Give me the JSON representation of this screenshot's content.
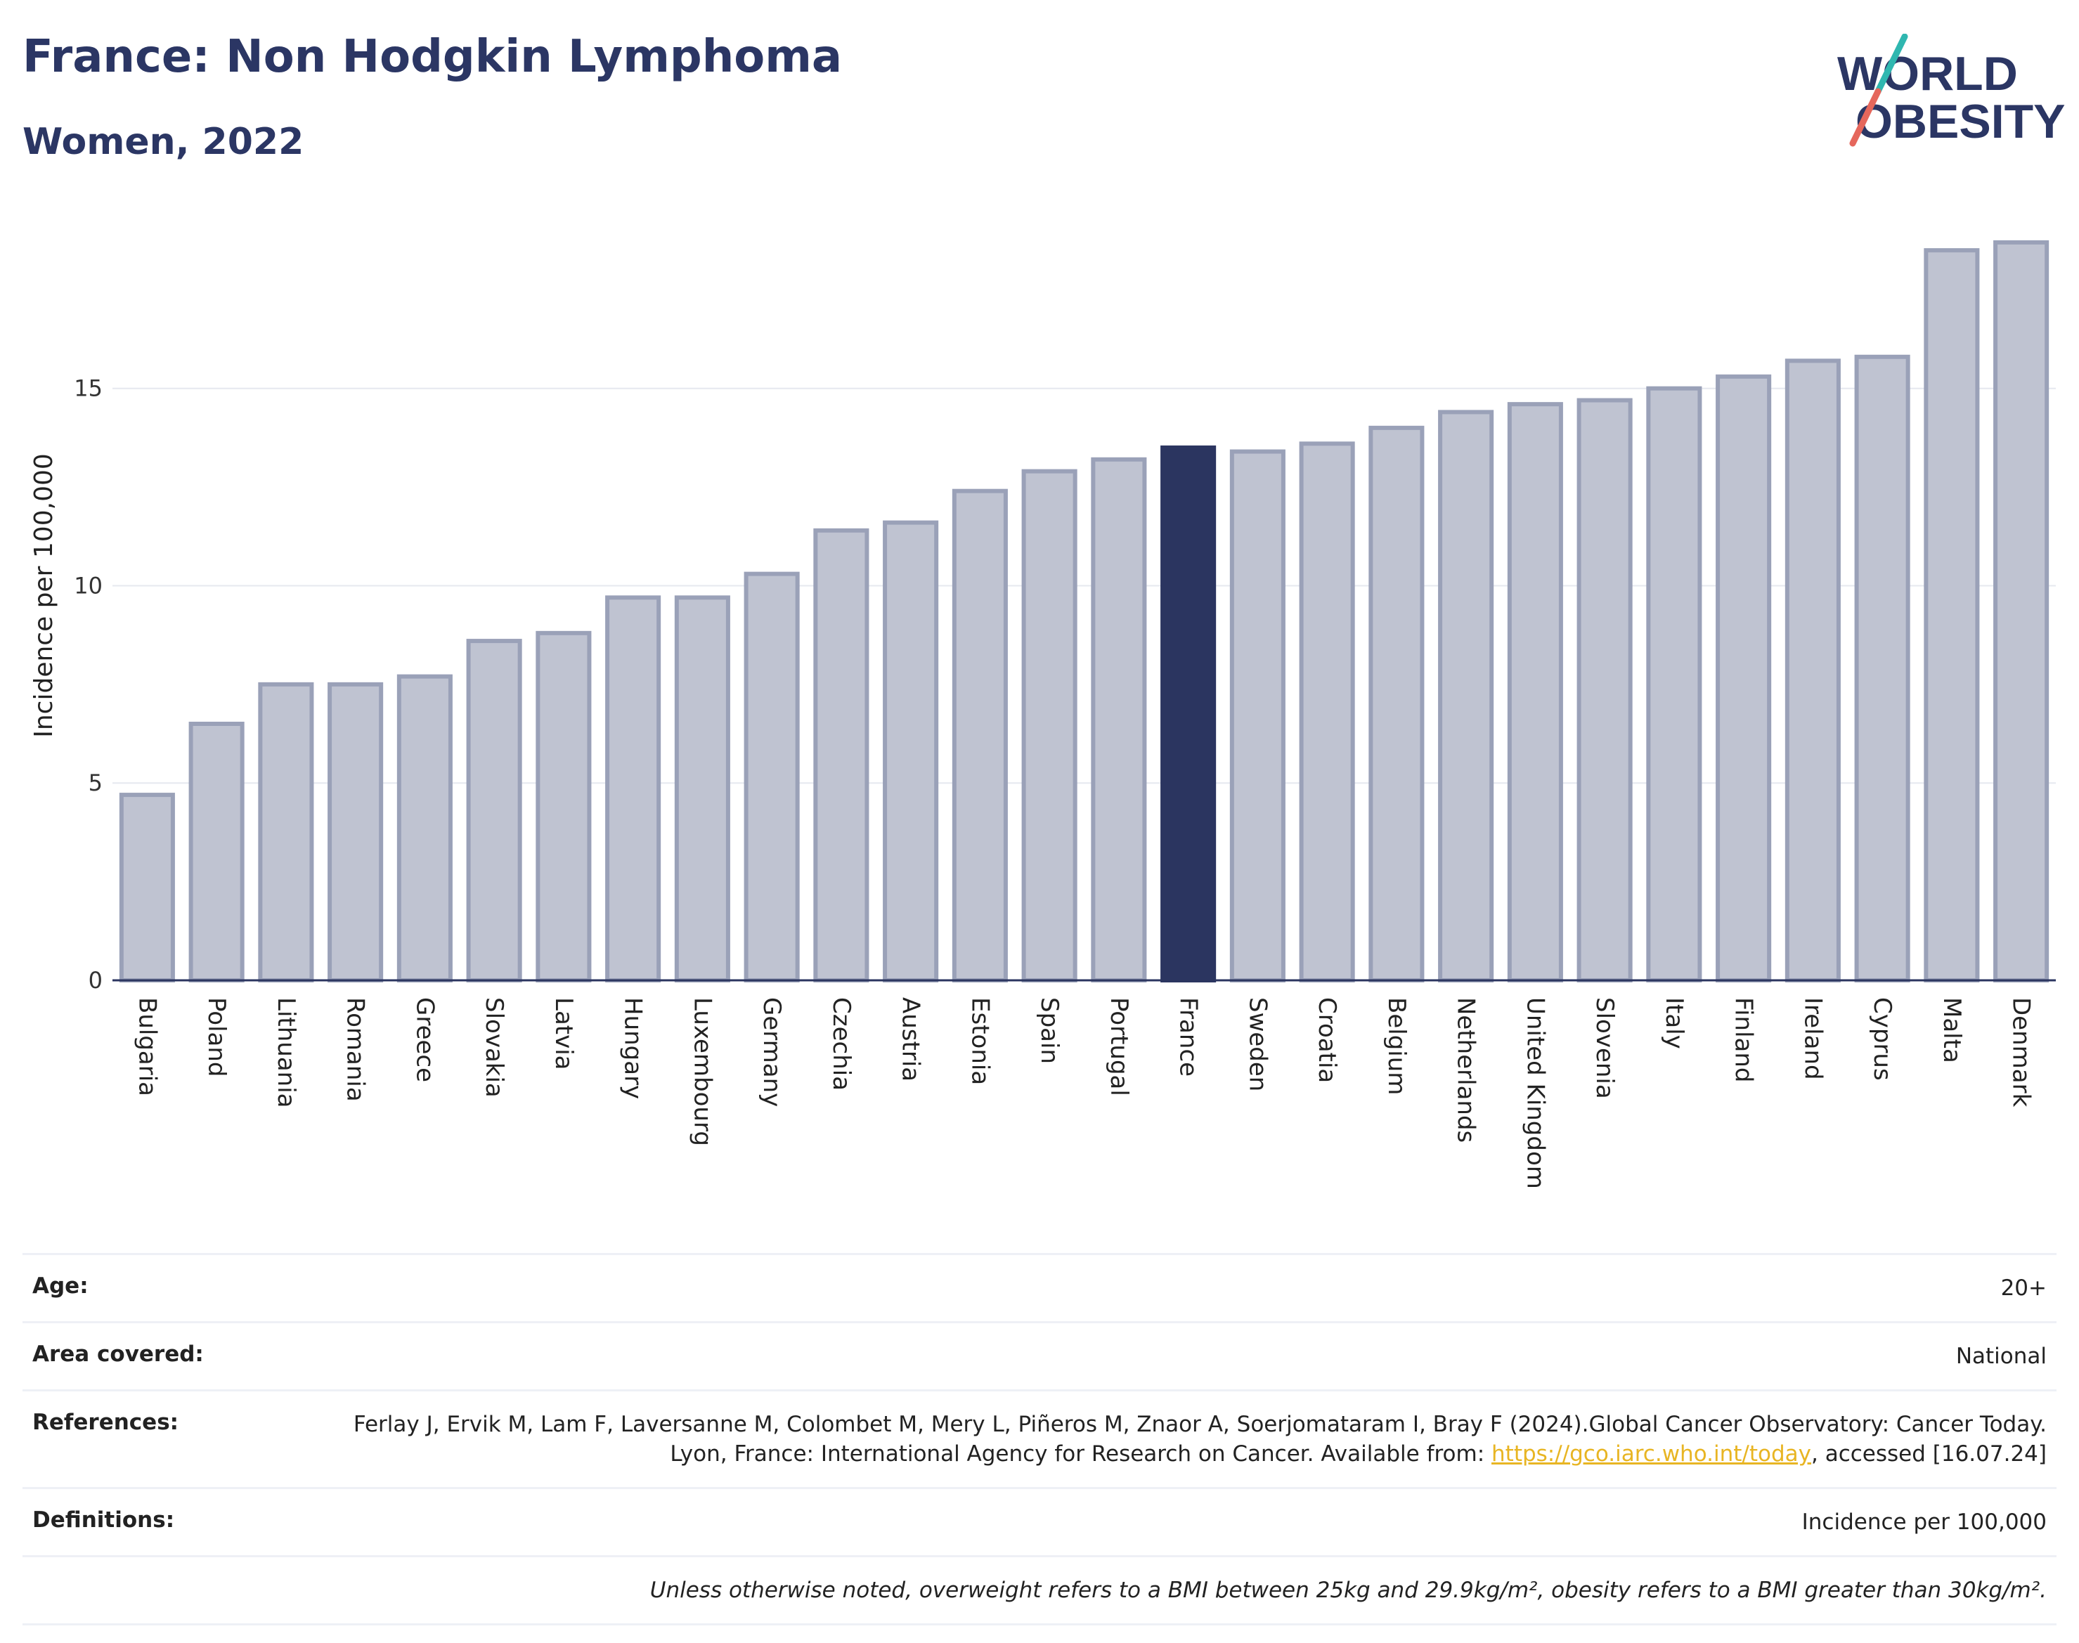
{
  "header": {
    "title": "France: Non Hodgkin Lymphoma",
    "subtitle": "Women, 2022",
    "logo_line1": "WORLD",
    "logo_line2": "OBESITY"
  },
  "colors": {
    "bar": "#bfc3d1",
    "bar_border": "#9aa1b8",
    "highlight": "#2b3560",
    "grid": "#e6e8ef",
    "axis": "#2b3560",
    "logo_text": "#2b3664",
    "logo_teal": "#2fb7b0",
    "logo_red": "#e5675c"
  },
  "chart_data": {
    "type": "bar",
    "categories": [
      "Bulgaria",
      "Poland",
      "Lithuania",
      "Romania",
      "Greece",
      "Slovakia",
      "Latvia",
      "Hungary",
      "Luxembourg",
      "Germany",
      "Czechia",
      "Austria",
      "Estonia",
      "Spain",
      "Portugal",
      "France",
      "Sweden",
      "Croatia",
      "Belgium",
      "Netherlands",
      "United Kingdom",
      "Slovenia",
      "Italy",
      "Finland",
      "Ireland",
      "Cyprus",
      "Malta",
      "Denmark"
    ],
    "values": [
      4.7,
      6.5,
      7.5,
      7.5,
      7.7,
      8.6,
      8.8,
      9.7,
      9.7,
      10.3,
      11.4,
      11.6,
      12.4,
      12.9,
      13.2,
      13.5,
      13.4,
      13.6,
      14.0,
      14.4,
      14.6,
      14.7,
      15.0,
      15.3,
      15.7,
      15.8,
      18.5,
      18.7
    ],
    "highlight": "France",
    "ylabel": "Incidence per 100,000",
    "yticks": [
      0,
      5,
      10,
      15
    ],
    "ylim": [
      0,
      19.5
    ],
    "grid": true
  },
  "info": {
    "age_label": "Age:",
    "age_value": "20+",
    "area_label": "Area covered:",
    "area_value": "National",
    "references_label": "References:",
    "references_text": "Ferlay J, Ervik M, Lam F, Laversanne M, Colombet M, Mery L, Piñeros M, Znaor A, Soerjomataram I, Bray F (2024).Global Cancer Observatory: Cancer Today. Lyon, France: International Agency for Research on Cancer. Available from: ",
    "references_link": "https://gco.iarc.who.int/today",
    "references_tail": ", accessed [16.07.24]",
    "definitions_label": "Definitions:",
    "definitions_value": "Incidence per 100,000",
    "note": "Unless otherwise noted, overweight refers to a BMI between 25kg and 29.9kg/m², obesity refers to a BMI greater than 30kg/m²."
  }
}
